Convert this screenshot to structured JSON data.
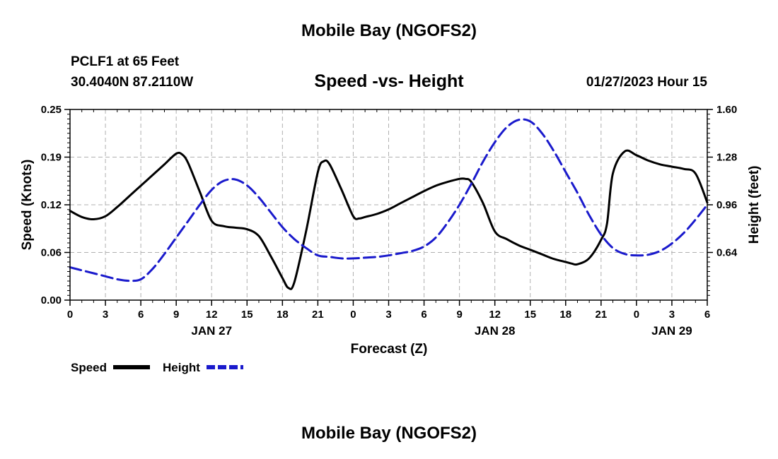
{
  "header": {
    "title": "Mobile Bay (NGOFS2)",
    "station": "PCLF1 at 65 Feet",
    "coords": "30.4040N  87.2110W",
    "plot_title": "Speed -vs- Height",
    "datetime": "01/27/2023 Hour 15"
  },
  "footer": {
    "title": "Mobile Bay (NGOFS2)"
  },
  "colors": {
    "speed": "#000000",
    "height": "#1a1acc",
    "grid": "#b0b0b0"
  },
  "chart_data": {
    "type": "line",
    "title": "Speed -vs- Height",
    "xlabel": "Forecast (Z)",
    "ylabel_left": "Speed (Knots)",
    "ylabel_right": "Height (feet)",
    "xlim": [
      0,
      54
    ],
    "ylim_left": [
      0,
      0.25
    ],
    "ylim_right": [
      0.32,
      1.6
    ],
    "x_ticks": [
      0,
      3,
      6,
      9,
      12,
      15,
      18,
      21,
      24,
      27,
      30,
      33,
      36,
      39,
      42,
      45,
      48,
      51,
      54
    ],
    "x_tick_labels": [
      "0",
      "3",
      "6",
      "9",
      "12",
      "15",
      "18",
      "21",
      "0",
      "3",
      "6",
      "9",
      "12",
      "15",
      "18",
      "21",
      "0",
      "3",
      "6"
    ],
    "date_labels": [
      {
        "x": 12,
        "label": "JAN 27"
      },
      {
        "x": 36,
        "label": "JAN 28"
      },
      {
        "x": 51,
        "label": "JAN 29"
      }
    ],
    "y_left_ticks": [
      0.0,
      0.0625,
      0.125,
      0.1875,
      0.25
    ],
    "y_left_tick_labels": [
      "0.00",
      "0.06",
      "0.12",
      "0.19",
      "0.25"
    ],
    "y_right_ticks": [
      0.64,
      0.96,
      1.28,
      1.6
    ],
    "y_right_tick_labels": [
      "0.64",
      "0.96",
      "1.28",
      "1.60"
    ],
    "legend": [
      {
        "name": "Speed",
        "style": "solid"
      },
      {
        "name": "Height",
        "style": "dashed"
      }
    ],
    "series": [
      {
        "name": "Speed",
        "axis": "left",
        "style": "solid",
        "x": [
          0,
          1,
          2,
          3,
          4,
          5,
          6,
          7,
          8,
          9,
          9.5,
          10,
          11,
          12,
          13,
          14,
          15,
          16,
          17,
          18,
          18.5,
          19,
          20,
          21,
          21.5,
          22,
          23,
          24,
          24.5,
          25,
          26,
          27,
          28,
          29,
          30,
          31,
          32,
          33,
          33.5,
          34,
          35,
          36,
          37,
          38,
          39,
          40,
          41,
          42,
          42.5,
          43,
          44,
          45,
          45.5,
          46,
          47,
          48,
          49,
          50,
          51,
          52,
          53,
          54
        ],
        "y": [
          0.117,
          0.109,
          0.106,
          0.11,
          0.122,
          0.136,
          0.15,
          0.164,
          0.178,
          0.192,
          0.191,
          0.18,
          0.142,
          0.104,
          0.097,
          0.095,
          0.093,
          0.084,
          0.058,
          0.029,
          0.016,
          0.023,
          0.09,
          0.168,
          0.182,
          0.178,
          0.145,
          0.11,
          0.107,
          0.109,
          0.113,
          0.119,
          0.127,
          0.135,
          0.143,
          0.15,
          0.155,
          0.159,
          0.159,
          0.155,
          0.127,
          0.09,
          0.08,
          0.072,
          0.066,
          0.06,
          0.054,
          0.05,
          0.048,
          0.047,
          0.055,
          0.079,
          0.1,
          0.166,
          0.195,
          0.19,
          0.183,
          0.178,
          0.175,
          0.172,
          0.166,
          0.128
        ]
      },
      {
        "name": "Height",
        "axis": "right",
        "style": "dashed",
        "x": [
          0,
          1,
          2,
          3,
          4,
          5,
          6,
          7,
          8,
          9,
          10,
          11,
          12,
          13,
          14,
          15,
          16,
          17,
          18,
          19,
          20,
          21,
          22,
          23,
          24,
          25,
          26,
          27,
          28,
          29,
          30,
          31,
          32,
          33,
          34,
          35,
          36,
          37,
          38,
          39,
          40,
          41,
          42,
          43,
          44,
          45,
          46,
          47,
          48,
          49,
          50,
          51,
          52,
          53,
          54
        ],
        "y": [
          0.54,
          0.52,
          0.5,
          0.48,
          0.46,
          0.45,
          0.46,
          0.53,
          0.63,
          0.74,
          0.85,
          0.96,
          1.06,
          1.12,
          1.13,
          1.09,
          1.01,
          0.91,
          0.81,
          0.73,
          0.67,
          0.62,
          0.61,
          0.6,
          0.6,
          0.605,
          0.61,
          0.62,
          0.635,
          0.65,
          0.68,
          0.74,
          0.84,
          0.96,
          1.1,
          1.25,
          1.38,
          1.48,
          1.53,
          1.52,
          1.44,
          1.32,
          1.18,
          1.04,
          0.89,
          0.76,
          0.67,
          0.63,
          0.62,
          0.625,
          0.65,
          0.7,
          0.77,
          0.86,
          0.96
        ]
      }
    ]
  }
}
